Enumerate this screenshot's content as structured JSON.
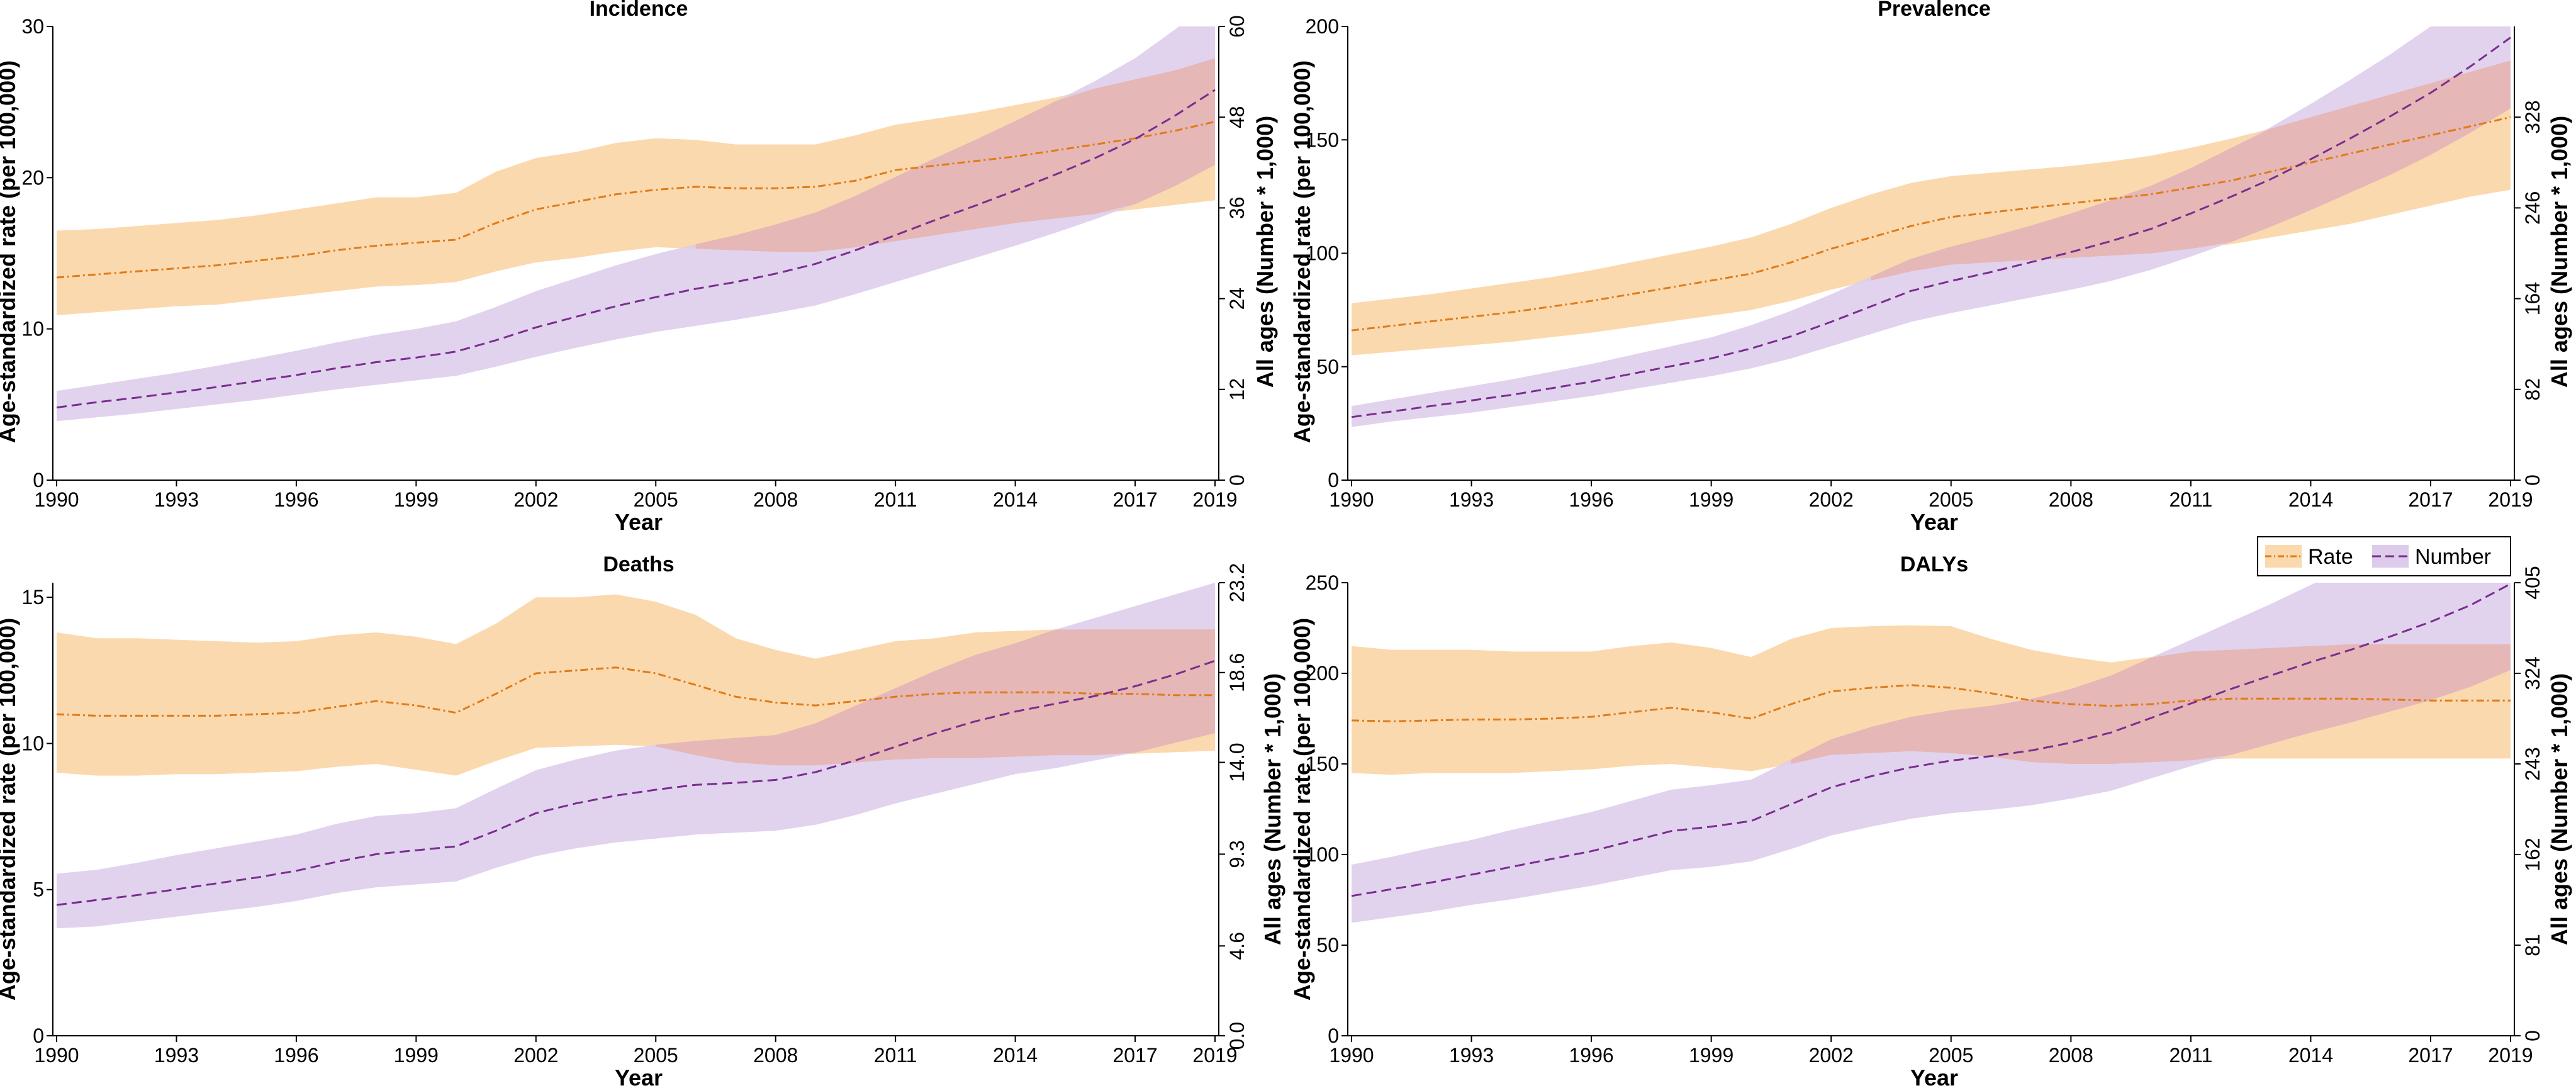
{
  "legend": {
    "rate_label": "Rate",
    "number_label": "Number"
  },
  "colors": {
    "rate_line": "#E07B1A",
    "rate_band": "#FBD9AE",
    "number_line": "#7B2D8E",
    "number_band": "#DCCBEB",
    "overlap_band": "#E5B7B6"
  },
  "chart_data": [
    {
      "type": "line",
      "title": "Incidence",
      "xlabel": "Year",
      "ylabel": "Age-standardized rate (per 100,000)",
      "y2label": "All ages (Number * 1,000)",
      "x": [
        1990,
        1991,
        1992,
        1993,
        1994,
        1995,
        1996,
        1997,
        1998,
        1999,
        2000,
        2001,
        2002,
        2003,
        2004,
        2005,
        2006,
        2007,
        2008,
        2009,
        2010,
        2011,
        2012,
        2013,
        2014,
        2015,
        2016,
        2017,
        2018,
        2019
      ],
      "xticks": [
        "1990",
        "1993",
        "1996",
        "1999",
        "2002",
        "2005",
        "2008",
        "2011",
        "2014",
        "2017",
        "2019"
      ],
      "ylim": [
        0,
        30
      ],
      "yticks": [
        "0",
        "10",
        "20",
        "30"
      ],
      "y2lim": [
        0,
        60
      ],
      "y2ticks": [
        "0",
        "12",
        "24",
        "36",
        "48",
        "60"
      ],
      "series": [
        {
          "name": "Rate",
          "axis": "left",
          "values": [
            13.4,
            13.6,
            13.8,
            14.0,
            14.2,
            14.5,
            14.8,
            15.2,
            15.5,
            15.7,
            15.9,
            17.0,
            17.9,
            18.4,
            18.9,
            19.2,
            19.4,
            19.3,
            19.3,
            19.4,
            19.8,
            20.5,
            20.8,
            21.1,
            21.4,
            21.8,
            22.2,
            22.6,
            23.1,
            23.7
          ],
          "lower": [
            10.9,
            11.1,
            11.3,
            11.5,
            11.6,
            11.9,
            12.2,
            12.5,
            12.8,
            12.9,
            13.1,
            13.8,
            14.4,
            14.7,
            15.1,
            15.4,
            15.3,
            15.2,
            15.1,
            15.1,
            15.4,
            15.8,
            16.2,
            16.6,
            17.0,
            17.3,
            17.6,
            17.9,
            18.2,
            18.5
          ],
          "upper": [
            16.5,
            16.6,
            16.8,
            17.0,
            17.2,
            17.5,
            17.9,
            18.3,
            18.7,
            18.7,
            19.0,
            20.4,
            21.3,
            21.7,
            22.3,
            22.6,
            22.5,
            22.2,
            22.2,
            22.2,
            22.8,
            23.5,
            23.9,
            24.3,
            24.8,
            25.3,
            25.9,
            26.5,
            27.1,
            27.9
          ]
        },
        {
          "name": "Number",
          "axis": "right",
          "values": [
            9.6,
            10.3,
            10.9,
            11.6,
            12.3,
            13.1,
            13.9,
            14.8,
            15.6,
            16.2,
            17.0,
            18.5,
            20.2,
            21.6,
            23.0,
            24.2,
            25.3,
            26.2,
            27.3,
            28.6,
            30.4,
            32.4,
            34.4,
            36.3,
            38.3,
            40.4,
            42.6,
            45.1,
            48.2,
            51.6
          ],
          "lower": [
            7.8,
            8.3,
            8.8,
            9.4,
            10.0,
            10.6,
            11.3,
            12.0,
            12.6,
            13.2,
            13.8,
            15.0,
            16.3,
            17.5,
            18.6,
            19.6,
            20.4,
            21.2,
            22.1,
            23.1,
            24.6,
            26.2,
            27.8,
            29.4,
            31.0,
            32.7,
            34.5,
            36.5,
            38.9,
            41.7
          ],
          "upper": [
            11.8,
            12.6,
            13.4,
            14.2,
            15.1,
            16.1,
            17.1,
            18.2,
            19.2,
            20.0,
            21.0,
            22.9,
            25.0,
            26.7,
            28.4,
            29.9,
            31.2,
            32.4,
            33.8,
            35.4,
            37.6,
            40.1,
            42.6,
            45.0,
            47.5,
            50.1,
            52.8,
            55.8,
            59.6,
            63.8
          ]
        }
      ]
    },
    {
      "type": "line",
      "title": "Prevalence",
      "xlabel": "Year",
      "ylabel": "Age-standardized rate (per 100,000)",
      "y2label": "All ages (Number * 1,000)",
      "x": [
        1990,
        1991,
        1992,
        1993,
        1994,
        1995,
        1996,
        1997,
        1998,
        1999,
        2000,
        2001,
        2002,
        2003,
        2004,
        2005,
        2006,
        2007,
        2008,
        2009,
        2010,
        2011,
        2012,
        2013,
        2014,
        2015,
        2016,
        2017,
        2018,
        2019
      ],
      "xticks": [
        "1990",
        "1993",
        "1996",
        "1999",
        "2002",
        "2005",
        "2008",
        "2011",
        "2014",
        "2017",
        "2019"
      ],
      "ylim": [
        0,
        200
      ],
      "yticks": [
        "0",
        "50",
        "100",
        "150",
        "200"
      ],
      "y2lim": [
        0,
        410
      ],
      "y2ticks": [
        "0",
        "82",
        "164",
        "246",
        "328"
      ],
      "series": [
        {
          "name": "Rate",
          "axis": "left",
          "values": [
            66,
            68,
            70,
            72,
            74,
            76.5,
            79,
            82,
            85,
            88,
            91,
            96,
            102,
            107,
            112,
            116,
            118,
            120,
            122,
            124,
            126,
            129,
            132,
            136,
            140,
            144,
            148,
            152,
            156,
            160
          ],
          "lower": [
            55,
            56.5,
            58,
            59.5,
            61,
            63,
            65,
            67.5,
            70,
            72.5,
            75,
            79,
            84,
            88,
            92,
            95,
            96,
            97,
            98,
            99,
            100,
            102,
            104,
            107,
            110,
            113,
            117,
            121,
            125,
            128
          ],
          "upper": [
            78,
            80,
            82,
            84.5,
            87,
            89.5,
            92.5,
            96,
            99.5,
            103,
            107,
            113,
            120,
            126,
            131,
            134,
            135.5,
            137,
            138.5,
            140.5,
            143,
            146.5,
            150.5,
            155,
            160,
            165,
            170,
            175,
            180,
            185
          ]
        },
        {
          "name": "Number",
          "axis": "right",
          "values": [
            57,
            62,
            67,
            72,
            77,
            83,
            89,
            96,
            103,
            110,
            119,
            130,
            143,
            157,
            171,
            180,
            188,
            197,
            206,
            216,
            227,
            241,
            256,
            272,
            290,
            309,
            329,
            350,
            374,
            400
          ],
          "lower": [
            48,
            53,
            57,
            61,
            66,
            71,
            76,
            82,
            88,
            94,
            101,
            110,
            121,
            132,
            143,
            151,
            158,
            165,
            172,
            180,
            190,
            202,
            215,
            229,
            244,
            260,
            276,
            294,
            314,
            336
          ],
          "upper": [
            67,
            73,
            79,
            85,
            91,
            98,
            105,
            113,
            121,
            129,
            140,
            153,
            168,
            184,
            200,
            211,
            220,
            230,
            241,
            253,
            266,
            282,
            300,
            319,
            340,
            362,
            385,
            410,
            437,
            469
          ]
        }
      ]
    },
    {
      "type": "line",
      "title": "Deaths",
      "xlabel": "Year",
      "ylabel": "Age-standardized rate (per 100,000)",
      "y2label": "All ages (Number * 1,000)",
      "x": [
        1990,
        1991,
        1992,
        1993,
        1994,
        1995,
        1996,
        1997,
        1998,
        1999,
        2000,
        2001,
        2002,
        2003,
        2004,
        2005,
        2006,
        2007,
        2008,
        2009,
        2010,
        2011,
        2012,
        2013,
        2014,
        2015,
        2016,
        2017,
        2018,
        2019
      ],
      "xticks": [
        "1990",
        "1993",
        "1996",
        "1999",
        "2002",
        "2005",
        "2008",
        "2011",
        "2014",
        "2017",
        "2019"
      ],
      "ylim": [
        0,
        15.5
      ],
      "yticks": [
        "0",
        "5",
        "10",
        "15"
      ],
      "y2lim": [
        0,
        23.2
      ],
      "y2ticks": [
        "0.0",
        "4.6",
        "9.3",
        "14.0",
        "18.6",
        "23.2"
      ],
      "series": [
        {
          "name": "Rate",
          "axis": "left",
          "values": [
            11.0,
            10.95,
            10.95,
            10.95,
            10.95,
            11.0,
            11.05,
            11.25,
            11.45,
            11.3,
            11.05,
            11.7,
            12.4,
            12.5,
            12.6,
            12.4,
            12.0,
            11.6,
            11.4,
            11.3,
            11.45,
            11.6,
            11.7,
            11.75,
            11.75,
            11.75,
            11.7,
            11.7,
            11.65,
            11.65
          ],
          "lower": [
            9.0,
            8.9,
            8.9,
            8.95,
            8.95,
            9.0,
            9.05,
            9.2,
            9.3,
            9.1,
            8.9,
            9.4,
            9.85,
            9.9,
            9.95,
            9.9,
            9.6,
            9.35,
            9.25,
            9.25,
            9.35,
            9.45,
            9.5,
            9.5,
            9.55,
            9.6,
            9.6,
            9.65,
            9.7,
            9.75
          ],
          "upper": [
            13.8,
            13.6,
            13.6,
            13.55,
            13.5,
            13.45,
            13.5,
            13.7,
            13.8,
            13.65,
            13.4,
            14.1,
            15.0,
            15.0,
            15.1,
            14.85,
            14.4,
            13.6,
            13.2,
            12.9,
            13.2,
            13.5,
            13.6,
            13.8,
            13.85,
            13.9,
            13.9,
            13.9,
            13.9,
            13.9
          ]
        },
        {
          "name": "Number",
          "axis": "right",
          "values": [
            6.7,
            6.95,
            7.2,
            7.5,
            7.8,
            8.1,
            8.45,
            8.9,
            9.3,
            9.5,
            9.7,
            10.5,
            11.4,
            11.9,
            12.3,
            12.6,
            12.85,
            12.95,
            13.1,
            13.5,
            14.1,
            14.8,
            15.5,
            16.1,
            16.6,
            17.0,
            17.4,
            17.9,
            18.5,
            19.2
          ],
          "lower": [
            5.5,
            5.6,
            5.85,
            6.1,
            6.35,
            6.6,
            6.9,
            7.3,
            7.6,
            7.75,
            7.9,
            8.6,
            9.2,
            9.6,
            9.9,
            10.1,
            10.3,
            10.4,
            10.5,
            10.8,
            11.3,
            11.9,
            12.4,
            12.9,
            13.4,
            13.7,
            14.1,
            14.5,
            15.0,
            15.5
          ],
          "upper": [
            8.3,
            8.5,
            8.85,
            9.25,
            9.6,
            9.95,
            10.3,
            10.85,
            11.25,
            11.4,
            11.65,
            12.65,
            13.6,
            14.15,
            14.6,
            14.9,
            15.1,
            15.25,
            15.4,
            16.0,
            16.9,
            17.8,
            18.7,
            19.5,
            20.1,
            20.8,
            21.4,
            22.0,
            22.6,
            23.2
          ]
        }
      ]
    },
    {
      "type": "line",
      "title": "DALYs",
      "xlabel": "Year",
      "ylabel": "Age-standardized rate (per 100,000)",
      "y2label": "All ages (Number * 1,000)",
      "x": [
        1990,
        1991,
        1992,
        1993,
        1994,
        1995,
        1996,
        1997,
        1998,
        1999,
        2000,
        2001,
        2002,
        2003,
        2004,
        2005,
        2006,
        2007,
        2008,
        2009,
        2010,
        2011,
        2012,
        2013,
        2014,
        2015,
        2016,
        2017,
        2018,
        2019
      ],
      "xticks": [
        "1990",
        "1993",
        "1996",
        "1999",
        "2002",
        "2005",
        "2008",
        "2011",
        "2014",
        "2017",
        "2019"
      ],
      "ylim": [
        0,
        250
      ],
      "yticks": [
        "0",
        "50",
        "100",
        "150",
        "200",
        "250"
      ],
      "y2lim": [
        0,
        405
      ],
      "y2ticks": [
        "0",
        "81",
        "162",
        "243",
        "324",
        "405"
      ],
      "series": [
        {
          "name": "Rate",
          "axis": "left",
          "values": [
            174,
            173.5,
            174,
            174.5,
            174.5,
            175,
            176,
            178.5,
            181,
            178.5,
            175,
            183,
            190,
            192,
            193.5,
            192,
            189,
            185,
            183,
            182,
            183,
            185,
            186,
            186,
            186,
            186,
            185.5,
            185,
            185,
            185
          ],
          "lower": [
            145,
            144,
            145,
            145,
            145,
            146,
            147,
            149,
            150,
            148,
            146,
            150,
            155,
            156,
            157,
            156,
            154,
            151,
            150,
            150,
            151,
            152,
            153,
            153,
            153,
            153,
            153,
            153,
            153,
            153
          ],
          "upper": [
            215,
            213,
            213,
            213,
            212,
            212,
            212,
            215,
            217,
            214,
            209,
            219,
            225,
            226,
            226.5,
            226,
            219,
            213,
            209,
            206,
            209,
            212,
            213,
            214,
            215,
            216,
            216,
            216,
            216,
            216
          ]
        },
        {
          "name": "Number",
          "axis": "right",
          "values": [
            125,
            131,
            137,
            144,
            151,
            158,
            165,
            174,
            183,
            187,
            192,
            207,
            222,
            232,
            240,
            246,
            250,
            255,
            262,
            271,
            284,
            297,
            310,
            322,
            334,
            345,
            357,
            370,
            385,
            404
          ],
          "lower": [
            101,
            106,
            111,
            117,
            122,
            128,
            134,
            141,
            148,
            151,
            156,
            167,
            179,
            187,
            194,
            199,
            202,
            206,
            212,
            219,
            230,
            241,
            251,
            261,
            271,
            280,
            290,
            300,
            312,
            327
          ],
          "upper": [
            153,
            160,
            168,
            175,
            184,
            192,
            200,
            210,
            220,
            224,
            229,
            247,
            265,
            276,
            285,
            291,
            295,
            301,
            310,
            322,
            338,
            354,
            370,
            386,
            403,
            420,
            436,
            452,
            472,
            494
          ]
        }
      ]
    }
  ]
}
